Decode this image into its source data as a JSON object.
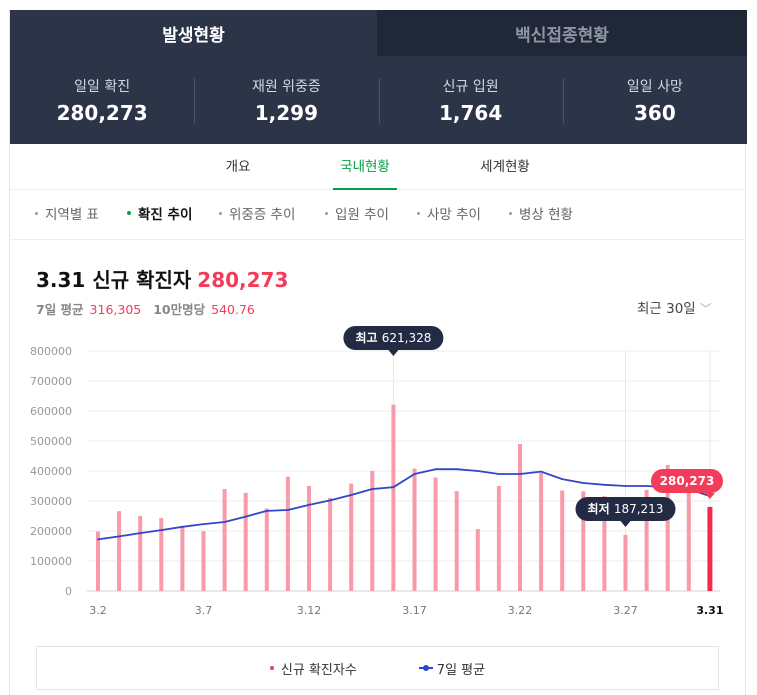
{
  "top_tabs": [
    {
      "label": "발생현황",
      "active": true
    },
    {
      "label": "백신접종현황",
      "active": false
    }
  ],
  "stats": [
    {
      "label": "일일 확진",
      "value": "280,273"
    },
    {
      "label": "재원 위중증",
      "value": "1,299"
    },
    {
      "label": "신규 입원",
      "value": "1,764"
    },
    {
      "label": "일일 사망",
      "value": "360"
    }
  ],
  "sub_tabs": [
    {
      "label": "개요",
      "active": false
    },
    {
      "label": "국내현황",
      "active": true
    },
    {
      "label": "세계현황",
      "active": false
    }
  ],
  "chips": [
    {
      "label": "지역별 표",
      "active": false
    },
    {
      "label": "확진 추이",
      "active": true
    },
    {
      "label": "위중증 추이",
      "active": false
    },
    {
      "label": "입원 추이",
      "active": false
    },
    {
      "label": "사망 추이",
      "active": false
    },
    {
      "label": "병상 현황",
      "active": false
    }
  ],
  "chart_header": {
    "date": "3.31",
    "title": "신규 확진자",
    "value": "280,273",
    "avg_label": "7일 평균",
    "avg_value": "316,305",
    "per100k_label": "10만명당",
    "per100k_value": "540.76",
    "range_label": "최근 30일"
  },
  "colors": {
    "bar": "#f79aaa",
    "bar_highlight": "#f42a4f",
    "avg_line": "#2f47c8",
    "grid": "#eeeeee",
    "tooltip_dark": "#232a44",
    "accent_green": "#06a044"
  },
  "chart_data": {
    "type": "bar",
    "x": [
      "3.2",
      "3.3",
      "3.4",
      "3.5",
      "3.6",
      "3.7",
      "3.8",
      "3.9",
      "3.10",
      "3.11",
      "3.12",
      "3.13",
      "3.14",
      "3.15",
      "3.16",
      "3.17",
      "3.18",
      "3.19",
      "3.20",
      "3.21",
      "3.22",
      "3.23",
      "3.24",
      "3.25",
      "3.26",
      "3.27",
      "3.28",
      "3.29",
      "3.30",
      "3.31"
    ],
    "x_ticks": [
      "3.2",
      "3.7",
      "3.12",
      "3.17",
      "3.22",
      "3.27",
      "3.31"
    ],
    "y_ticks": [
      "800000",
      "700000",
      "600000",
      "500000",
      "400000",
      "300000",
      "200000",
      "100000",
      "0"
    ],
    "ylim": [
      0,
      800000
    ],
    "grid": true,
    "series": [
      {
        "name": "신규 확진자수",
        "type": "bar",
        "values": [
          198000,
          266000,
          250000,
          243000,
          212000,
          199000,
          340000,
          327000,
          275000,
          381000,
          350000,
          310000,
          358000,
          400000,
          621328,
          408000,
          378000,
          333000,
          206000,
          350000,
          490000,
          393000,
          335000,
          332000,
          316000,
          187213,
          337000,
          420000,
          345000,
          280273
        ]
      },
      {
        "name": "7일 평균",
        "type": "line",
        "values": [
          172000,
          182000,
          193000,
          203000,
          214000,
          223000,
          230000,
          248000,
          267000,
          270000,
          287000,
          302000,
          320000,
          340000,
          346000,
          390000,
          406000,
          406000,
          400000,
          390000,
          390000,
          398000,
          373000,
          360000,
          354000,
          350000,
          350000,
          346000,
          340000,
          316305
        ]
      }
    ],
    "annotations": [
      {
        "label": "최고",
        "value": "621,328",
        "index": 14
      },
      {
        "label": "최저",
        "value": "187,213",
        "index": 25
      },
      {
        "label": "",
        "value": "280,273",
        "index": 29
      }
    ],
    "legend_position": "bottom"
  }
}
